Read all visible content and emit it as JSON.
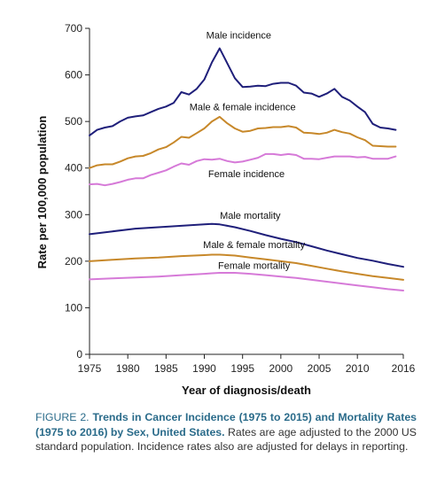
{
  "chart_data": {
    "type": "line",
    "xlabel": "Year of diagnosis/death",
    "ylabel": "Rate per 100,000 population",
    "xlim": [
      1975,
      2016
    ],
    "ylim": [
      0,
      700
    ],
    "xticks": [
      1975,
      1980,
      1985,
      1990,
      1995,
      2000,
      2005,
      2010,
      2016
    ],
    "yticks": [
      0,
      100,
      200,
      300,
      400,
      500,
      600,
      700
    ],
    "grid": false,
    "legend": "none (series labeled inline)",
    "series": [
      {
        "name": "Male incidence",
        "color": "#1f1f7a",
        "x": [
          1975,
          1976,
          1977,
          1978,
          1979,
          1980,
          1981,
          1982,
          1983,
          1984,
          1985,
          1986,
          1987,
          1988,
          1989,
          1990,
          1991,
          1992,
          1993,
          1994,
          1995,
          1996,
          1997,
          1998,
          1999,
          2000,
          2001,
          2002,
          2003,
          2004,
          2005,
          2006,
          2007,
          2008,
          2009,
          2010,
          2011,
          2012,
          2013,
          2014,
          2015
        ],
        "values": [
          470,
          482,
          487,
          490,
          500,
          508,
          511,
          513,
          520,
          527,
          532,
          540,
          563,
          558,
          570,
          590,
          627,
          657,
          625,
          593,
          574,
          575,
          577,
          576,
          581,
          583,
          583,
          577,
          562,
          560,
          553,
          560,
          570,
          553,
          545,
          532,
          520,
          495,
          487,
          485,
          482
        ]
      },
      {
        "name": "Male & female incidence",
        "color": "#c7882a",
        "x": [
          1975,
          1976,
          1977,
          1978,
          1979,
          1980,
          1981,
          1982,
          1983,
          1984,
          1985,
          1986,
          1987,
          1988,
          1989,
          1990,
          1991,
          1992,
          1993,
          1994,
          1995,
          1996,
          1997,
          1998,
          1999,
          2000,
          2001,
          2002,
          2003,
          2004,
          2005,
          2006,
          2007,
          2008,
          2009,
          2010,
          2011,
          2012,
          2013,
          2014,
          2015
        ],
        "values": [
          400,
          406,
          408,
          408,
          414,
          421,
          425,
          426,
          432,
          440,
          445,
          455,
          467,
          465,
          475,
          485,
          500,
          510,
          496,
          485,
          478,
          480,
          485,
          486,
          488,
          488,
          490,
          487,
          476,
          475,
          473,
          476,
          482,
          477,
          474,
          466,
          460,
          448,
          447,
          446,
          446
        ]
      },
      {
        "name": "Female incidence",
        "color": "#d67ad8",
        "x": [
          1975,
          1976,
          1977,
          1978,
          1979,
          1980,
          1981,
          1982,
          1983,
          1984,
          1985,
          1986,
          1987,
          1988,
          1989,
          1990,
          1991,
          1992,
          1993,
          1994,
          1995,
          1996,
          1997,
          1998,
          1999,
          2000,
          2001,
          2002,
          2003,
          2004,
          2005,
          2006,
          2007,
          2008,
          2009,
          2010,
          2011,
          2012,
          2013,
          2014,
          2015
        ],
        "values": [
          365,
          366,
          363,
          366,
          370,
          375,
          378,
          378,
          385,
          390,
          395,
          403,
          410,
          407,
          415,
          419,
          418,
          420,
          415,
          412,
          414,
          418,
          422,
          430,
          430,
          428,
          430,
          428,
          420,
          420,
          419,
          422,
          425,
          425,
          425,
          423,
          424,
          420,
          420,
          420,
          425
        ]
      },
      {
        "name": "Male mortality",
        "color": "#1f1f7a",
        "x": [
          1975,
          1978,
          1981,
          1984,
          1987,
          1990,
          1991,
          1992,
          1994,
          1996,
          1998,
          2000,
          2002,
          2004,
          2006,
          2008,
          2010,
          2012,
          2014,
          2016
        ],
        "values": [
          258,
          264,
          270,
          273,
          276,
          279,
          280,
          279,
          273,
          265,
          256,
          248,
          241,
          232,
          223,
          215,
          207,
          201,
          194,
          188
        ]
      },
      {
        "name": "Male & female mortality",
        "color": "#c7882a",
        "x": [
          1975,
          1978,
          1981,
          1984,
          1987,
          1990,
          1991,
          1992,
          1994,
          1996,
          1998,
          2000,
          2002,
          2004,
          2006,
          2008,
          2010,
          2012,
          2014,
          2016
        ],
        "values": [
          200,
          203,
          206,
          208,
          211,
          213,
          214,
          214,
          212,
          208,
          204,
          200,
          196,
          190,
          184,
          178,
          173,
          168,
          164,
          160
        ]
      },
      {
        "name": "Female mortality",
        "color": "#d67ad8",
        "x": [
          1975,
          1978,
          1981,
          1984,
          1987,
          1990,
          1991,
          1992,
          1994,
          1996,
          1998,
          2000,
          2002,
          2004,
          2006,
          2008,
          2010,
          2012,
          2014,
          2016
        ],
        "values": [
          161,
          163,
          165,
          167,
          170,
          173,
          174,
          175,
          175,
          173,
          170,
          167,
          164,
          160,
          156,
          152,
          148,
          144,
          140,
          137
        ]
      }
    ]
  },
  "caption": {
    "lead_prefix": "FIGURE 2.",
    "lead_title": "Trends in Cancer Incidence (1975 to 2015) and Mortality Rates (1975 to 2016) by Sex, United States.",
    "body": "Rates are age adjusted to the 2000 US standard population. Incidence rates also are adjusted for delays in reporting."
  }
}
